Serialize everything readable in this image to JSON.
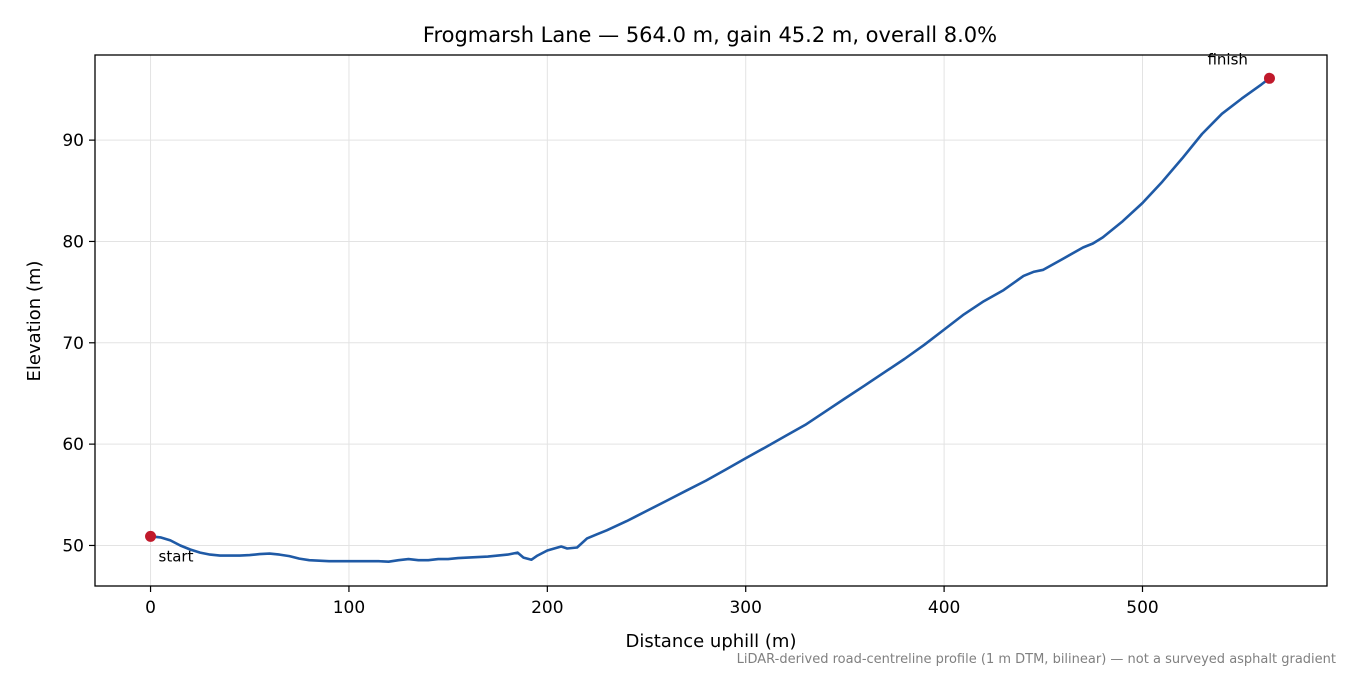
{
  "chart_data": {
    "type": "line",
    "title": "Frogmarsh Lane — 564.0 m, gain 45.2 m, overall 8.0%",
    "xlabel": "Distance uphill (m)",
    "ylabel": "Elevation (m)",
    "xlim": [
      -28,
      593
    ],
    "ylim": [
      46.0,
      98.4
    ],
    "xticks": [
      0,
      100,
      200,
      300,
      400,
      500
    ],
    "yticks": [
      50,
      60,
      70,
      80,
      90
    ],
    "grid": true,
    "series": [
      {
        "color": "#1f5aa6",
        "x": [
          0,
          5,
          10,
          15,
          20,
          25,
          30,
          35,
          40,
          45,
          50,
          55,
          60,
          65,
          70,
          75,
          80,
          85,
          90,
          95,
          100,
          105,
          110,
          115,
          120,
          125,
          130,
          135,
          140,
          145,
          150,
          155,
          160,
          165,
          170,
          175,
          180,
          185,
          188,
          192,
          195,
          200,
          207,
          210,
          215,
          220,
          225,
          230,
          240,
          250,
          260,
          270,
          280,
          290,
          300,
          310,
          320,
          330,
          340,
          350,
          360,
          370,
          380,
          390,
          400,
          410,
          420,
          430,
          440,
          445,
          450,
          460,
          470,
          475,
          480,
          490,
          500,
          510,
          520,
          530,
          540,
          550,
          560,
          564
        ],
        "y": [
          50.9,
          50.8,
          50.5,
          50.0,
          49.6,
          49.3,
          49.1,
          49.0,
          49.0,
          49.0,
          49.05,
          49.15,
          49.2,
          49.1,
          48.95,
          48.7,
          48.55,
          48.5,
          48.45,
          48.45,
          48.45,
          48.45,
          48.45,
          48.45,
          48.4,
          48.55,
          48.65,
          48.55,
          48.55,
          48.65,
          48.65,
          48.75,
          48.8,
          48.85,
          48.9,
          49.0,
          49.1,
          49.3,
          48.8,
          48.6,
          49.0,
          49.5,
          49.9,
          49.7,
          49.8,
          50.7,
          51.1,
          51.5,
          52.4,
          53.4,
          54.4,
          55.4,
          56.4,
          57.5,
          58.6,
          59.7,
          60.8,
          61.9,
          63.2,
          64.5,
          65.8,
          67.1,
          68.4,
          69.8,
          71.3,
          72.8,
          74.1,
          75.2,
          76.6,
          77.0,
          77.2,
          78.3,
          79.4,
          79.8,
          80.4,
          82.0,
          83.8,
          85.9,
          88.2,
          90.6,
          92.6,
          94.1,
          95.5,
          96.1
        ]
      }
    ],
    "markers": [
      {
        "x": 0,
        "y": 50.9,
        "label": "start",
        "color": "#c0192b"
      },
      {
        "x": 564,
        "y": 96.1,
        "label": "finish",
        "color": "#c0192b"
      }
    ]
  },
  "footnote": "LiDAR-derived road-centreline profile (1 m DTM, bilinear) — not a surveyed asphalt gradient"
}
